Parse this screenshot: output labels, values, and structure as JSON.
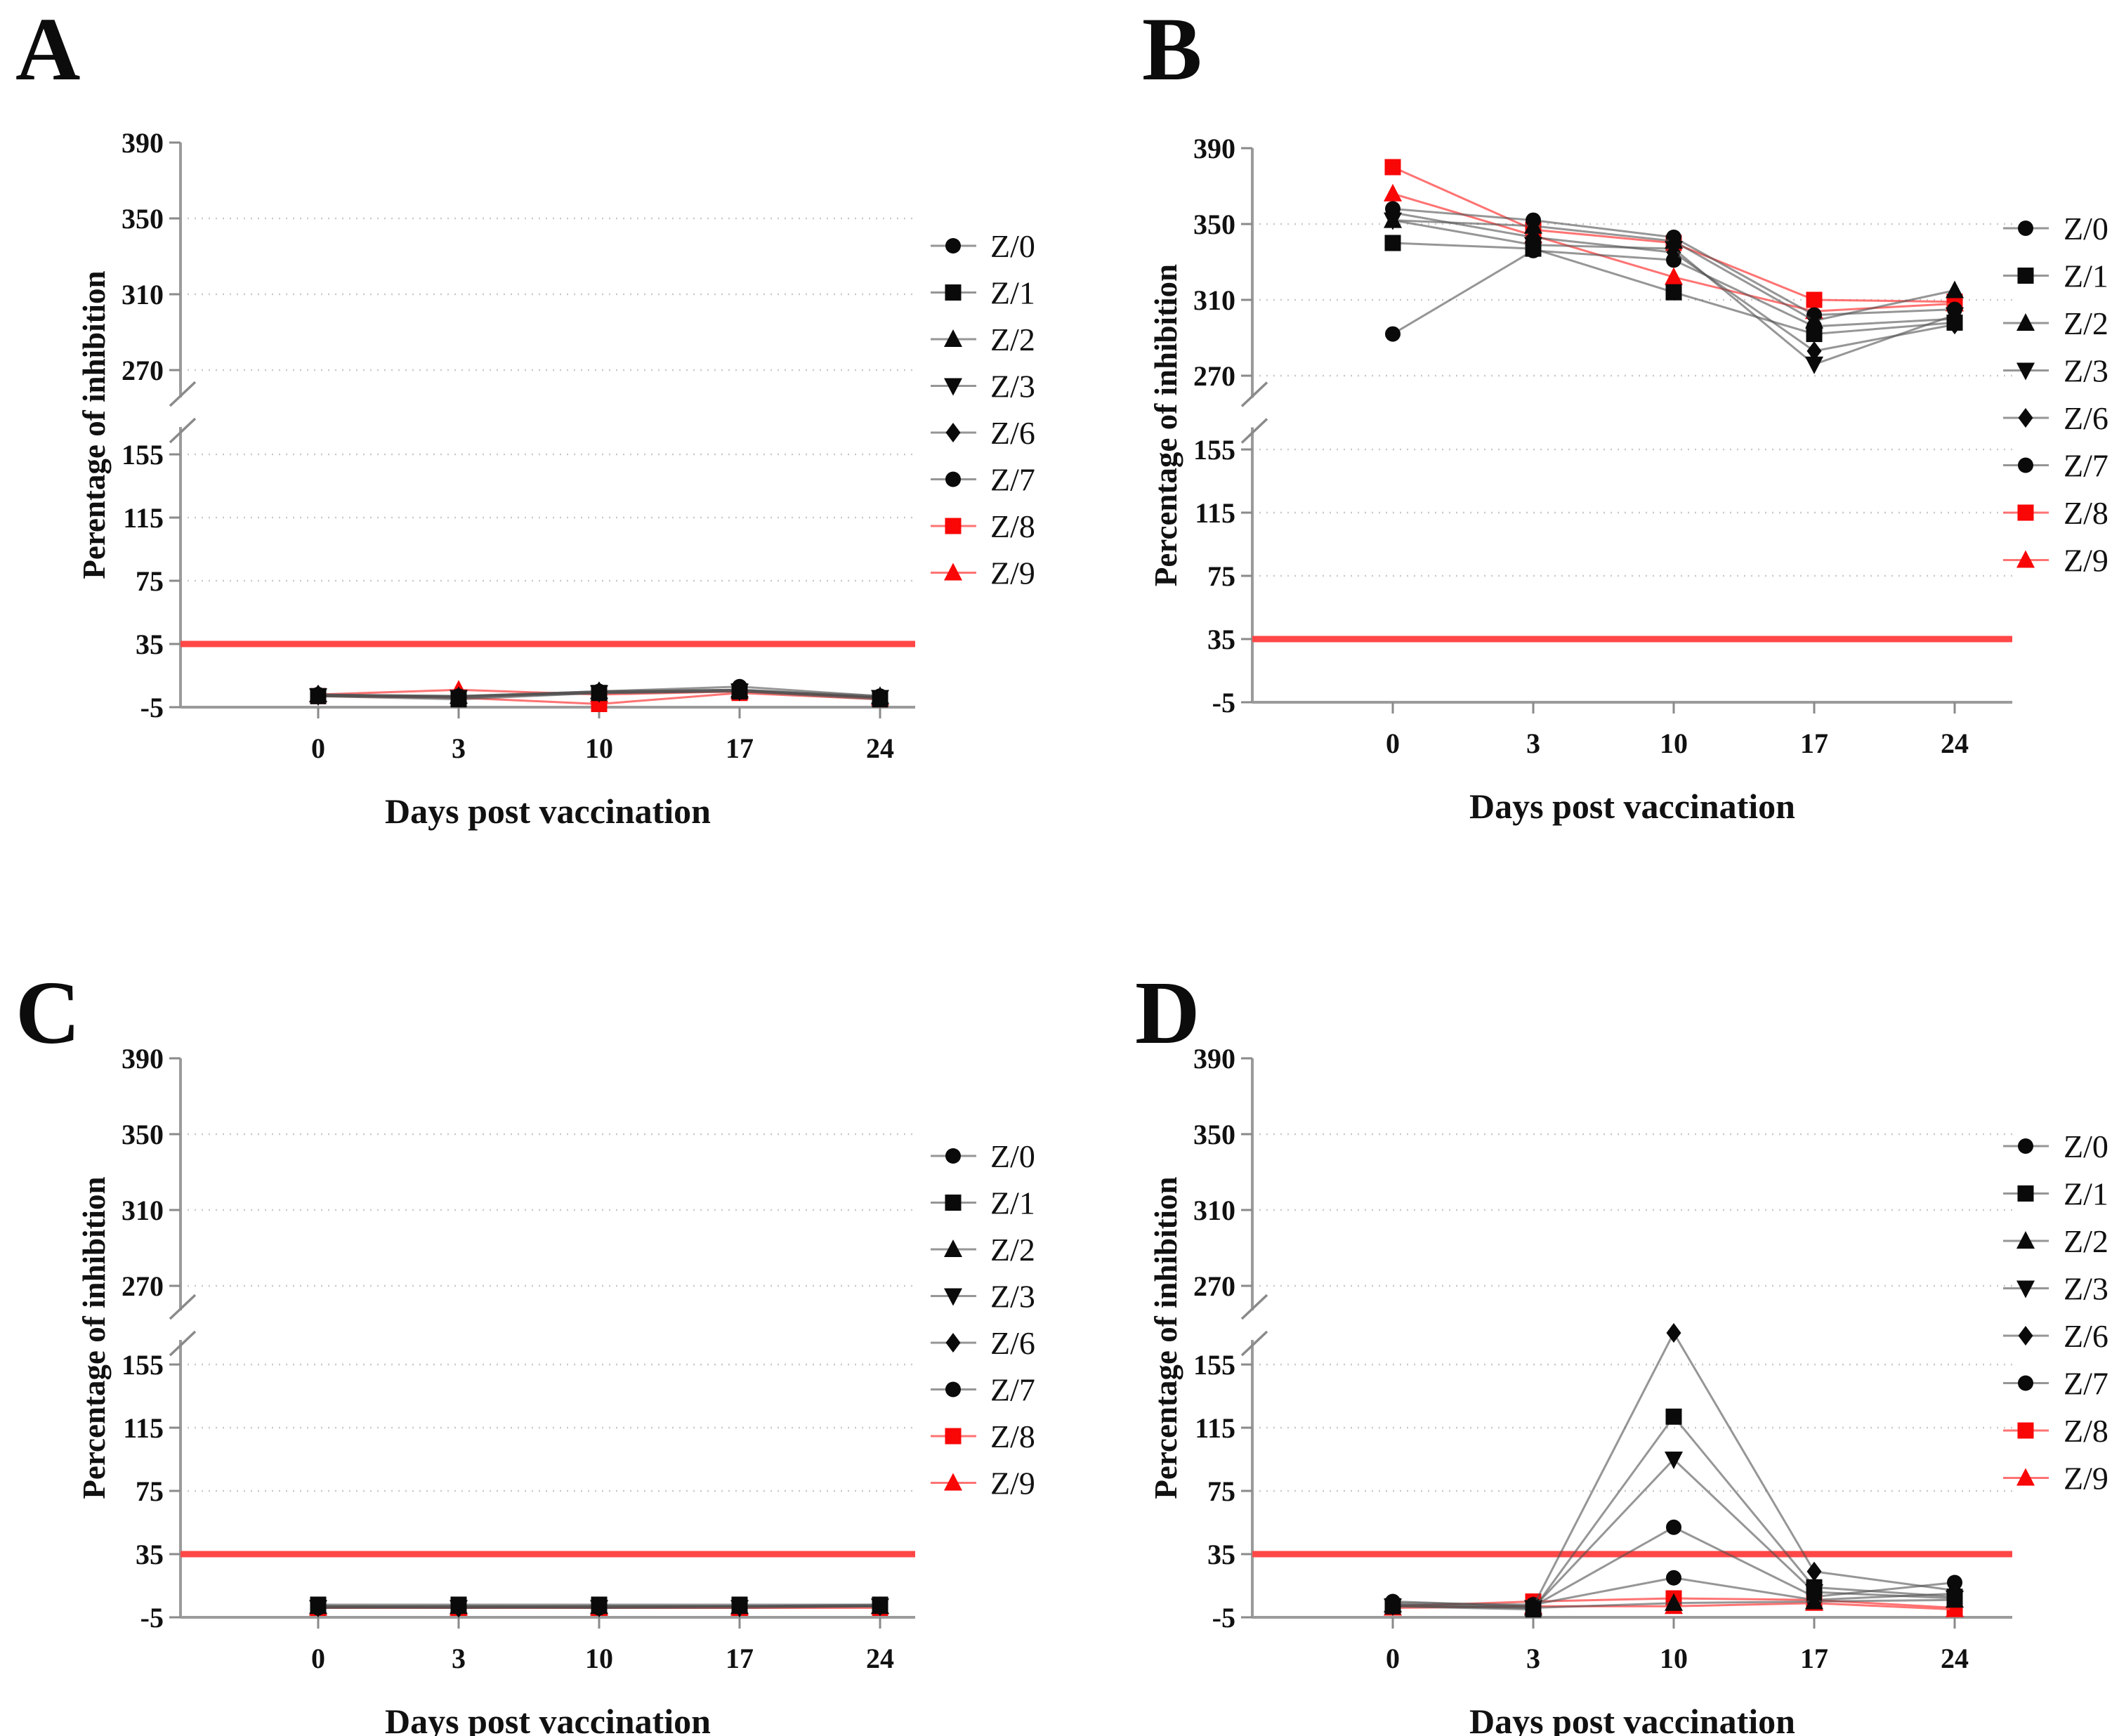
{
  "figure_title": "",
  "threshold": {
    "value": 35,
    "color": "#ff4747"
  },
  "chart_data": [
    {
      "panel_label": "A",
      "type": "line",
      "xlabel": "Days post vaccination",
      "ylabel": "Perentage of inhibition",
      "x_categories": [
        0,
        3,
        10,
        17,
        24
      ],
      "y_ticks": [
        -5,
        35,
        75,
        115,
        155,
        270,
        310,
        350,
        390
      ],
      "y_axis_break_between": [
        155,
        270
      ],
      "ylim_segments": [
        [
          -5,
          200
        ],
        [
          270,
          390
        ]
      ],
      "grid": "dotted-horizontal",
      "threshold_line": {
        "y": 35,
        "color": "#ff4747"
      },
      "legend_position": "right",
      "series": [
        {
          "name": "Z/0",
          "marker": "circle",
          "marker_color": "#0a0a0a",
          "line_color": "rgba(80,80,80,0.6)",
          "values": [
            3,
            2,
            5,
            8,
            2
          ]
        },
        {
          "name": "Z/1",
          "marker": "square",
          "marker_color": "#0a0a0a",
          "line_color": "rgba(80,80,80,0.6)",
          "values": [
            2,
            0,
            4,
            5,
            0
          ]
        },
        {
          "name": "Z/2",
          "marker": "triangle-up",
          "marker_color": "#0a0a0a",
          "line_color": "rgba(80,80,80,0.6)",
          "values": [
            3,
            2,
            5,
            6,
            2
          ]
        },
        {
          "name": "Z/3",
          "marker": "triangle-down",
          "marker_color": "#0a0a0a",
          "line_color": "rgba(80,80,80,0.6)",
          "values": [
            2,
            1,
            4,
            5,
            1
          ]
        },
        {
          "name": "Z/6",
          "marker": "diamond",
          "marker_color": "#0a0a0a",
          "line_color": "rgba(80,80,80,0.6)",
          "values": [
            3,
            1,
            5,
            6,
            1
          ]
        },
        {
          "name": "Z/7",
          "marker": "circle",
          "marker_color": "#0a0a0a",
          "line_color": "rgba(80,80,80,0.6)",
          "values": [
            2,
            2,
            4,
            6,
            1
          ]
        },
        {
          "name": "Z/8",
          "marker": "square",
          "marker_color": "#f90606",
          "line_color": "rgba(255,80,80,0.8)",
          "values": [
            2,
            1,
            -3,
            4,
            0
          ]
        },
        {
          "name": "Z/9",
          "marker": "triangle-up",
          "marker_color": "#f90606",
          "line_color": "rgba(255,80,80,0.8)",
          "values": [
            3,
            6,
            3,
            5,
            1
          ]
        }
      ]
    },
    {
      "panel_label": "B",
      "type": "line",
      "xlabel": "Days post vaccination",
      "ylabel": "Percentage of inhibition",
      "x_categories": [
        0,
        3,
        10,
        17,
        24
      ],
      "y_ticks": [
        -5,
        35,
        75,
        115,
        155,
        270,
        310,
        350,
        390
      ],
      "y_axis_break_between": [
        155,
        270
      ],
      "ylim_segments": [
        [
          -5,
          200
        ],
        [
          270,
          390
        ]
      ],
      "grid": "dotted-horizontal",
      "threshold_line": {
        "y": 35,
        "color": "#ff4747"
      },
      "legend_position": "right",
      "series": [
        {
          "name": "Z/0",
          "marker": "circle",
          "marker_color": "#0a0a0a",
          "line_color": "rgba(80,80,80,0.6)",
          "values": [
            292,
            336,
            331,
            296,
            300
          ]
        },
        {
          "name": "Z/1",
          "marker": "square",
          "marker_color": "#0a0a0a",
          "line_color": "rgba(80,80,80,0.6)",
          "values": [
            340,
            337,
            314,
            292,
            298
          ]
        },
        {
          "name": "Z/2",
          "marker": "triangle-up",
          "marker_color": "#0a0a0a",
          "line_color": "rgba(80,80,80,0.6)",
          "values": [
            352,
            349,
            341,
            299,
            315
          ]
        },
        {
          "name": "Z/3",
          "marker": "triangle-down",
          "marker_color": "#0a0a0a",
          "line_color": "rgba(80,80,80,0.6)",
          "values": [
            352,
            339,
            337,
            276,
            302
          ]
        },
        {
          "name": "Z/6",
          "marker": "diamond",
          "marker_color": "#0a0a0a",
          "line_color": "rgba(80,80,80,0.6)",
          "values": [
            356,
            343,
            335,
            283,
            297
          ]
        },
        {
          "name": "Z/7",
          "marker": "circle",
          "marker_color": "#0a0a0a",
          "line_color": "rgba(80,80,80,0.6)",
          "values": [
            358,
            352,
            343,
            302,
            305
          ]
        },
        {
          "name": "Z/8",
          "marker": "square",
          "marker_color": "#f90606",
          "line_color": "rgba(255,80,80,0.8)",
          "values": [
            380,
            347,
            340,
            310,
            309
          ]
        },
        {
          "name": "Z/9",
          "marker": "triangle-up",
          "marker_color": "#f90606",
          "line_color": "rgba(255,80,80,0.8)",
          "values": [
            366,
            344,
            322,
            304,
            308
          ]
        }
      ]
    },
    {
      "panel_label": "C",
      "type": "line",
      "xlabel": "Days post vaccination",
      "ylabel": "Percentage of inhibition",
      "x_categories": [
        0,
        3,
        10,
        17,
        24
      ],
      "y_ticks": [
        -5,
        35,
        75,
        115,
        155,
        270,
        310,
        350,
        390
      ],
      "y_axis_break_between": [
        155,
        270
      ],
      "ylim_segments": [
        [
          -5,
          200
        ],
        [
          270,
          390
        ]
      ],
      "grid": "dotted-horizontal",
      "threshold_line": {
        "y": 35,
        "color": "#ff4747"
      },
      "legend_position": "right",
      "series": [
        {
          "name": "Z/0",
          "marker": "circle",
          "marker_color": "#0a0a0a",
          "line_color": "rgba(80,80,80,0.6)",
          "values": [
            2,
            2,
            2,
            2,
            3
          ]
        },
        {
          "name": "Z/1",
          "marker": "square",
          "marker_color": "#0a0a0a",
          "line_color": "rgba(80,80,80,0.6)",
          "values": [
            3,
            3,
            3,
            3,
            3
          ]
        },
        {
          "name": "Z/2",
          "marker": "triangle-up",
          "marker_color": "#0a0a0a",
          "line_color": "rgba(80,80,80,0.6)",
          "values": [
            2,
            2,
            2,
            2,
            2
          ]
        },
        {
          "name": "Z/3",
          "marker": "triangle-down",
          "marker_color": "#0a0a0a",
          "line_color": "rgba(80,80,80,0.6)",
          "values": [
            1,
            1,
            1,
            1,
            2
          ]
        },
        {
          "name": "Z/6",
          "marker": "diamond",
          "marker_color": "#0a0a0a",
          "line_color": "rgba(80,80,80,0.6)",
          "values": [
            2,
            1,
            2,
            2,
            2
          ]
        },
        {
          "name": "Z/7",
          "marker": "circle",
          "marker_color": "#0a0a0a",
          "line_color": "rgba(80,80,80,0.6)",
          "values": [
            1,
            2,
            1,
            2,
            2
          ]
        },
        {
          "name": "Z/8",
          "marker": "square",
          "marker_color": "#f90606",
          "line_color": "rgba(255,80,80,0.8)",
          "values": [
            1,
            1,
            1,
            1,
            1
          ]
        },
        {
          "name": "Z/9",
          "marker": "triangle-up",
          "marker_color": "#f90606",
          "line_color": "rgba(255,80,80,0.8)",
          "values": [
            1,
            1,
            1,
            1,
            2
          ]
        }
      ]
    },
    {
      "panel_label": "D",
      "type": "line",
      "xlabel": "Days post vaccination",
      "ylabel": "Percentage of inhibition",
      "x_categories": [
        0,
        3,
        10,
        17,
        24
      ],
      "y_ticks": [
        -5,
        35,
        75,
        115,
        155,
        270,
        310,
        350,
        390
      ],
      "y_axis_break_between": [
        155,
        270
      ],
      "ylim_segments": [
        [
          -5,
          200
        ],
        [
          270,
          390
        ]
      ],
      "grid": "dotted-horizontal",
      "threshold_line": {
        "y": 35,
        "color": "#ff4747"
      },
      "legend_position": "right",
      "series": [
        {
          "name": "Z/0",
          "marker": "circle",
          "marker_color": "#0a0a0a",
          "line_color": "rgba(80,80,80,0.6)",
          "values": [
            5,
            2,
            52,
            8,
            17
          ]
        },
        {
          "name": "Z/1",
          "marker": "square",
          "marker_color": "#0a0a0a",
          "line_color": "rgba(80,80,80,0.6)",
          "values": [
            2,
            0,
            122,
            14,
            8
          ]
        },
        {
          "name": "Z/2",
          "marker": "triangle-up",
          "marker_color": "#0a0a0a",
          "line_color": "rgba(80,80,80,0.6)",
          "values": [
            3,
            1,
            4,
            5,
            6
          ]
        },
        {
          "name": "Z/3",
          "marker": "triangle-down",
          "marker_color": "#0a0a0a",
          "line_color": "rgba(80,80,80,0.6)",
          "values": [
            2,
            1,
            95,
            11,
            7
          ]
        },
        {
          "name": "Z/6",
          "marker": "diamond",
          "marker_color": "#0a0a0a",
          "line_color": "rgba(80,80,80,0.6)",
          "values": [
            3,
            2,
            175,
            24,
            12
          ]
        },
        {
          "name": "Z/7",
          "marker": "circle",
          "marker_color": "#0a0a0a",
          "line_color": "rgba(80,80,80,0.6)",
          "values": [
            4,
            3,
            20,
            6,
            10
          ]
        },
        {
          "name": "Z/8",
          "marker": "square",
          "marker_color": "#f90606",
          "line_color": "rgba(255,80,80,0.8)",
          "values": [
            2,
            5,
            7,
            6,
            1
          ]
        },
        {
          "name": "Z/9",
          "marker": "triangle-up",
          "marker_color": "#f90606",
          "line_color": "rgba(255,80,80,0.8)",
          "values": [
            1,
            2,
            2,
            4,
            0
          ]
        }
      ]
    }
  ]
}
